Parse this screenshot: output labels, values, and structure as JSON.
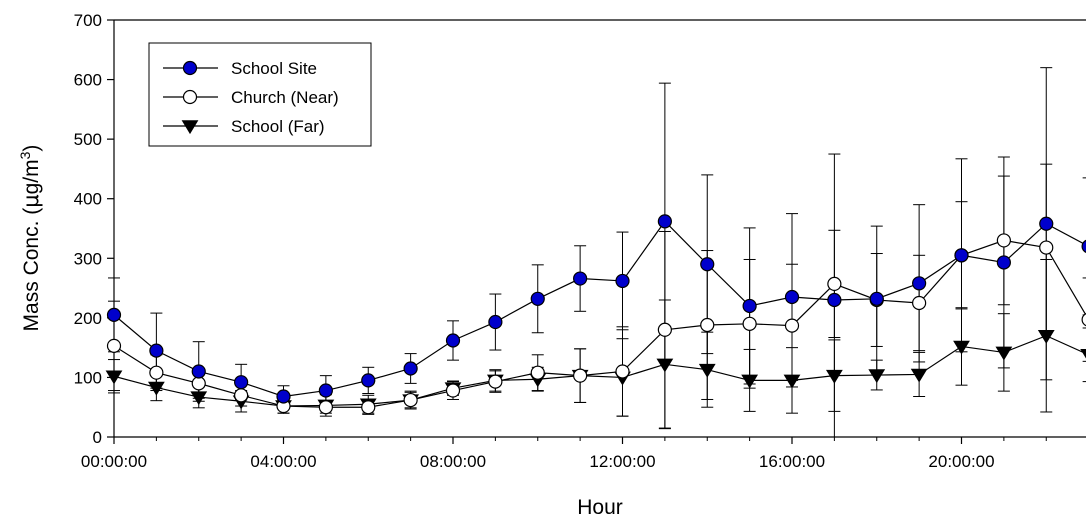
{
  "chart_data": {
    "type": "line",
    "title": "",
    "xlabel": "Hour",
    "ylabel": {
      "prefix": "Mass Conc. (",
      "mu": "μ",
      "unit": "g/m",
      "sup": "3",
      "suffix": ")"
    },
    "x": [
      0,
      1,
      2,
      3,
      4,
      5,
      6,
      7,
      8,
      9,
      10,
      11,
      12,
      13,
      14,
      15,
      16,
      17,
      18,
      19,
      20,
      21,
      22,
      23
    ],
    "xlim": [
      0,
      23
    ],
    "xticks": [
      {
        "value": 0,
        "label": "00:00:00"
      },
      {
        "value": 4,
        "label": "04:00:00"
      },
      {
        "value": 8,
        "label": "08:00:00"
      },
      {
        "value": 12,
        "label": "12:00:00"
      },
      {
        "value": 16,
        "label": "16:00:00"
      },
      {
        "value": 20,
        "label": "20:00:00"
      }
    ],
    "ylim": [
      0,
      700
    ],
    "yticks": [
      "0",
      "100",
      "200",
      "300",
      "400",
      "500",
      "600",
      "700"
    ],
    "grid": false,
    "legend_position": "top-left",
    "series": [
      {
        "name": "School Site",
        "marker": "filled-circle",
        "color": "#0000cc",
        "values": [
          205,
          145,
          110,
          92,
          68,
          78,
          95,
          115,
          162,
          193,
          232,
          266,
          262,
          362,
          290,
          220,
          235,
          230,
          232,
          258,
          305,
          293,
          358,
          320
        ],
        "err": [
          62,
          63,
          50,
          30,
          18,
          25,
          22,
          25,
          33,
          47,
          57,
          55,
          82,
          232,
          150,
          131,
          140,
          245,
          122,
          132,
          162,
          177,
          262,
          115
        ]
      },
      {
        "name": "Church (Near)",
        "marker": "open-circle",
        "color": "#ffffff",
        "values": [
          153,
          108,
          90,
          70,
          52,
          50,
          50,
          62,
          78,
          93,
          108,
          103,
          110,
          180,
          188,
          190,
          187,
          257,
          230,
          225,
          305,
          330,
          318,
          197
        ],
        "err": [
          75,
          30,
          25,
          18,
          12,
          10,
          12,
          13,
          15,
          18,
          30,
          45,
          75,
          165,
          125,
          108,
          103,
          90,
          78,
          80,
          90,
          108,
          140,
          70
        ]
      },
      {
        "name": "School (Far)",
        "marker": "filled-triangle-down",
        "color": "#000000",
        "values": [
          102,
          83,
          67,
          60,
          52,
          53,
          55,
          62,
          82,
          95,
          97,
          103,
          100,
          122,
          113,
          95,
          95,
          103,
          104,
          105,
          152,
          142,
          170,
          138
        ],
        "err": [
          28,
          22,
          18,
          18,
          12,
          18,
          15,
          15,
          12,
          18,
          20,
          45,
          65,
          108,
          63,
          52,
          55,
          60,
          25,
          37,
          65,
          65,
          128,
          45
        ]
      }
    ]
  }
}
